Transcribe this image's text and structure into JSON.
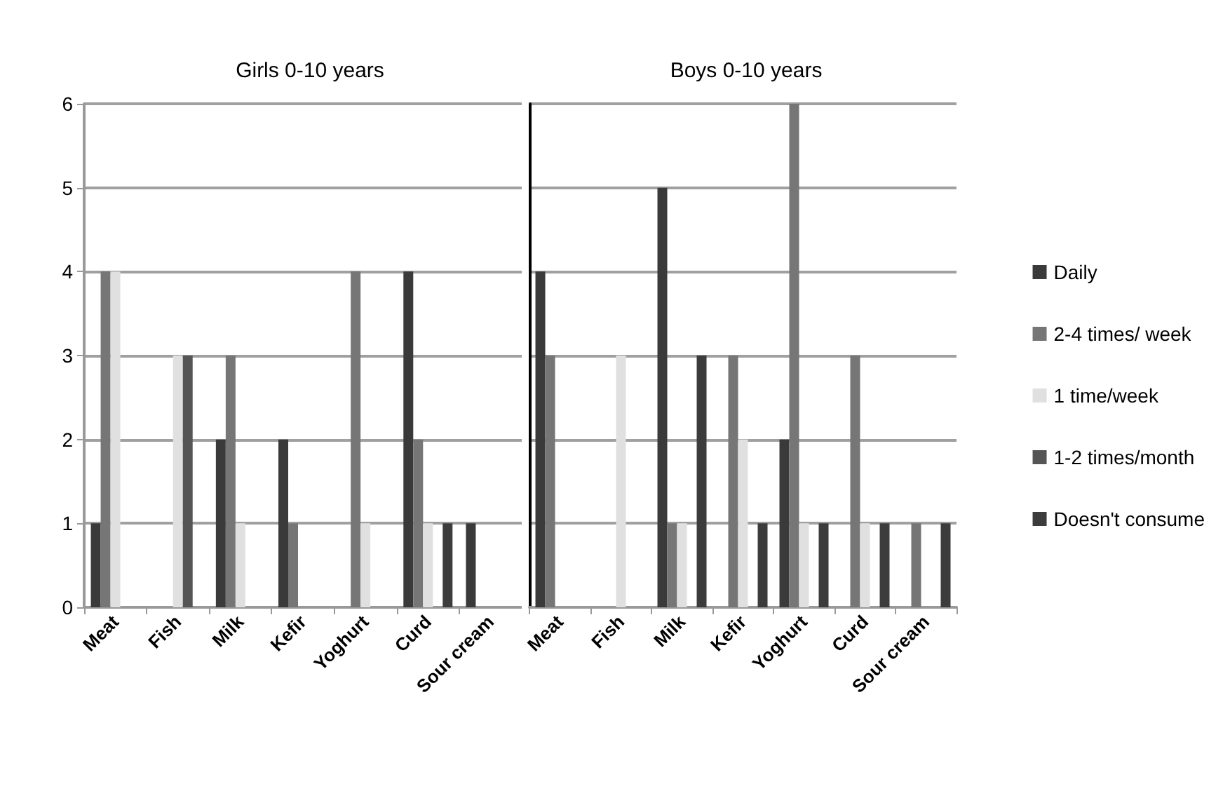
{
  "chart_data": [
    {
      "type": "bar",
      "title": "Girls 0-10 years",
      "categories": [
        "Meat",
        "Fish",
        "Milk",
        "Kefir",
        "Yoghurt",
        "Curd",
        "Sour cream"
      ],
      "series": [
        {
          "color": "#3a3a3a",
          "values": [
            1,
            0,
            2,
            2,
            0,
            4,
            1
          ]
        },
        {
          "color": "#767676",
          "values": [
            4,
            0,
            3,
            1,
            4,
            2,
            0
          ]
        },
        {
          "color": "#e0e0e0",
          "values": [
            4,
            3,
            1,
            0,
            1,
            1,
            0
          ]
        },
        {
          "color": "#555555",
          "values": [
            0,
            3,
            0,
            0,
            0,
            0,
            0
          ]
        },
        {
          "color": "#3c3c3c",
          "values": [
            0,
            0,
            0,
            0,
            0,
            1,
            0
          ]
        }
      ],
      "ylim": [
        0,
        6
      ],
      "yticks": [
        0,
        1,
        2,
        3,
        4,
        5,
        6
      ],
      "grid": "y"
    },
    {
      "type": "bar",
      "title": "Boys 0-10 years",
      "categories": [
        "Meat",
        "Fish",
        "Milk",
        "Kefir",
        "Yoghurt",
        "Curd",
        "Sour cream"
      ],
      "series": [
        {
          "name": "Daily",
          "color": "#3a3a3a",
          "values": [
            4,
            0,
            5,
            0,
            2,
            0,
            0
          ]
        },
        {
          "name": "2-4 times/ week",
          "color": "#767676",
          "values": [
            3,
            0,
            1,
            3,
            6,
            3,
            1
          ]
        },
        {
          "name": "1 time/week",
          "color": "#e0e0e0",
          "values": [
            0,
            3,
            1,
            2,
            1,
            1,
            0
          ]
        },
        {
          "name": "1-2 times/month",
          "color": "#555555",
          "values": [
            0,
            0,
            0,
            0,
            0,
            0,
            0
          ]
        },
        {
          "name": "Doesn't consume",
          "color": "#3c3c3c",
          "values": [
            0,
            0,
            3,
            1,
            1,
            1,
            1
          ]
        }
      ],
      "ylim": [
        0,
        6
      ],
      "yticks": [
        0,
        1,
        2,
        3,
        4,
        5,
        6
      ],
      "grid": "y",
      "tick_labels": "x",
      "legend": "right"
    }
  ]
}
